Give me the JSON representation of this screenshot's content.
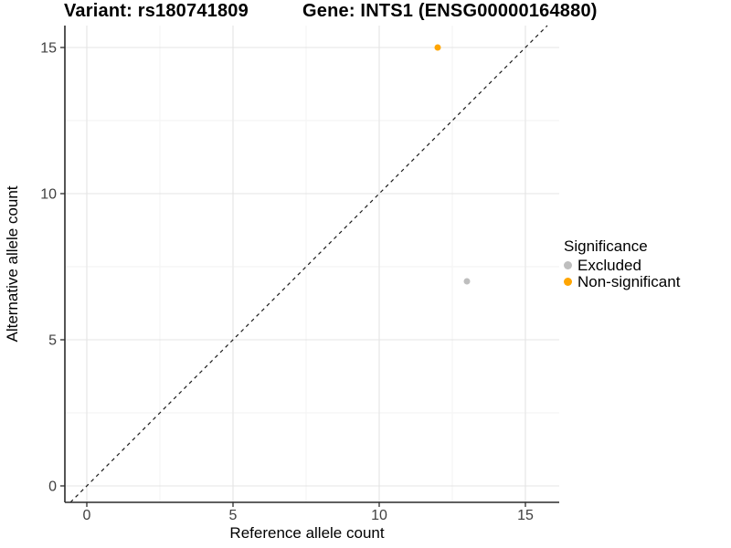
{
  "titles": {
    "variant": "Variant: rs180741809",
    "gene": "Gene: INTS1 (ENSG00000164880)"
  },
  "axes": {
    "x": {
      "label": "Reference allele count"
    },
    "y": {
      "label": "Alternative allele count"
    }
  },
  "legend": {
    "title": "Significance",
    "items": [
      {
        "label": "Excluded",
        "color": "#BEBEBE"
      },
      {
        "label": "Non-significant",
        "color": "#FFA500"
      }
    ]
  },
  "chart_data": {
    "type": "scatter",
    "title_left": "Variant: rs180741809",
    "title_right": "Gene: INTS1 (ENSG00000164880)",
    "xlabel": "Reference allele count",
    "ylabel": "Alternative allele count",
    "xlim": [
      -0.75,
      16.2
    ],
    "ylim": [
      -0.6,
      15.75
    ],
    "x_major_ticks": [
      0,
      5,
      10,
      15
    ],
    "y_major_ticks": [
      0,
      5,
      10,
      15
    ],
    "x_minor_gridlines": [
      2.5,
      7.5,
      12.5
    ],
    "y_minor_gridlines": [
      2.5,
      7.5,
      12.5
    ],
    "grid": true,
    "legend_title": "Significance",
    "legend_position": "right",
    "series": [
      {
        "name": "Excluded",
        "color": "#BEBEBE",
        "points": [
          [
            13,
            7
          ]
        ]
      },
      {
        "name": "Non-significant",
        "color": "#FFA500",
        "points": [
          [
            12,
            15
          ]
        ]
      }
    ],
    "reference_line": {
      "type": "identity",
      "equation": "y = x",
      "style": "dashed",
      "color": "#1A1A1A"
    }
  },
  "style": {
    "grid_major": "#E4E4E4",
    "grid_minor": "#F2F2F2",
    "axis_line": "#2B2B2B",
    "tick_text": "#404040",
    "point_radius": 3.5
  }
}
